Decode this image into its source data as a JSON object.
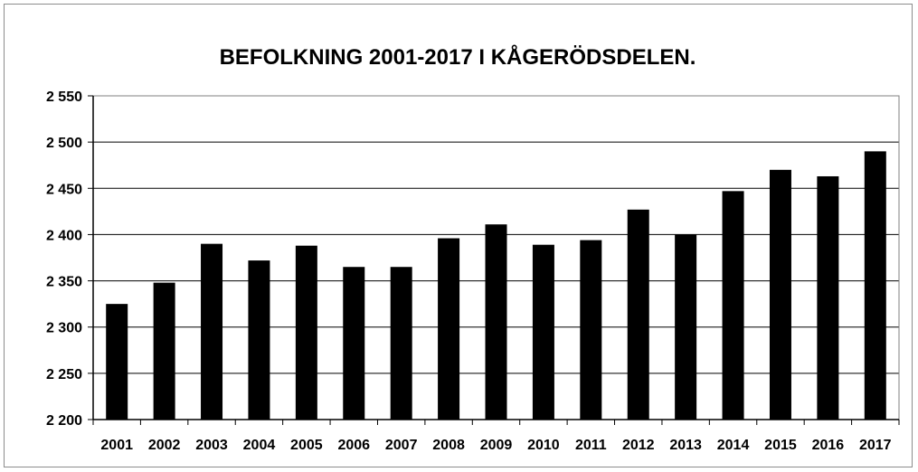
{
  "chart_data": {
    "type": "bar",
    "title": "BEFOLKNING 2001-2017 I KÅGERÖDSDELEN.",
    "xlabel": "",
    "ylabel": "",
    "categories": [
      "2001",
      "2002",
      "2003",
      "2004",
      "2005",
      "2006",
      "2007",
      "2008",
      "2009",
      "2010",
      "2011",
      "2012",
      "2013",
      "2014",
      "2015",
      "2016",
      "2017"
    ],
    "values": [
      2325,
      2348,
      2390,
      2372,
      2388,
      2365,
      2365,
      2396,
      2411,
      2389,
      2394,
      2427,
      2400,
      2447,
      2470,
      2463,
      2490
    ],
    "ylim": [
      2200,
      2550
    ],
    "yticks": [
      2200,
      2250,
      2300,
      2350,
      2400,
      2450,
      2500,
      2550
    ],
    "ytick_labels": [
      "2 200",
      "2 250",
      "2 300",
      "2 350",
      "2 400",
      "2 450",
      "2 500",
      "2 550"
    ],
    "grid": true,
    "legend": "none",
    "colors": {
      "bar": "#000000",
      "grid": "#000000",
      "axis": "#000000",
      "plot_border": "#808080",
      "frame": "#8c8c8c"
    }
  }
}
